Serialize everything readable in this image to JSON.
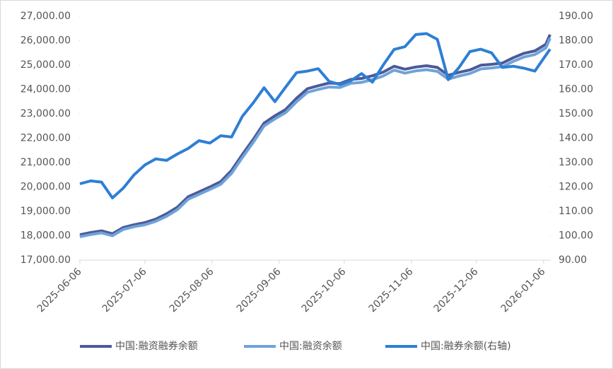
{
  "chart_data": {
    "type": "line",
    "x": [
      "2025-06-06",
      "2025-06-11",
      "2025-06-16",
      "2025-06-21",
      "2025-06-26",
      "2025-07-01",
      "2025-07-06",
      "2025-07-11",
      "2025-07-16",
      "2025-07-21",
      "2025-07-26",
      "2025-07-31",
      "2025-08-05",
      "2025-08-10",
      "2025-08-15",
      "2025-08-20",
      "2025-08-25",
      "2025-08-30",
      "2025-09-04",
      "2025-09-09",
      "2025-09-14",
      "2025-09-19",
      "2025-09-24",
      "2025-09-29",
      "2025-10-04",
      "2025-10-09",
      "2025-10-14",
      "2025-10-19",
      "2025-10-24",
      "2025-10-29",
      "2025-11-03",
      "2025-11-08",
      "2025-11-13",
      "2025-11-18",
      "2025-11-23",
      "2025-11-28",
      "2025-12-03",
      "2025-12-08",
      "2025-12-13",
      "2025-12-18",
      "2025-12-23",
      "2025-12-28",
      "2026-01-02",
      "2026-01-07",
      "2026-01-09"
    ],
    "series": [
      {
        "name": "中国:融资融券余额",
        "color": "#4c5a99",
        "values": [
          18040,
          18130,
          18200,
          18080,
          18340,
          18450,
          18540,
          18680,
          18900,
          19170,
          19600,
          19800,
          20000,
          20220,
          20680,
          21330,
          21950,
          22620,
          22920,
          23180,
          23640,
          24030,
          24150,
          24260,
          24240,
          24410,
          24450,
          24560,
          24710,
          24950,
          24830,
          24920,
          24970,
          24900,
          24580,
          24700,
          24800,
          24990,
          25030,
          25080,
          25300,
          25480,
          25580,
          25850,
          26250
        ]
      },
      {
        "name": "中国:融资余额",
        "color": "#6fa3d8",
        "values": [
          17960,
          18050,
          18120,
          18000,
          18260,
          18370,
          18450,
          18590,
          18800,
          19070,
          19500,
          19700,
          19900,
          20110,
          20560,
          21210,
          21830,
          22500,
          22790,
          23050,
          23500,
          23880,
          24000,
          24100,
          24080,
          24250,
          24290,
          24400,
          24550,
          24790,
          24670,
          24760,
          24810,
          24740,
          24420,
          24550,
          24650,
          24840,
          24880,
          24930,
          25150,
          25330,
          25430,
          25700,
          26100
        ]
      },
      {
        "name": "中国:融券余额(右轴)",
        "color": "#2e7fd4",
        "axis": "y2",
        "values": [
          121.3,
          122.5,
          122.0,
          115.5,
          119.5,
          125.0,
          129.0,
          131.5,
          130.9,
          133.5,
          135.8,
          139.0,
          138.0,
          141.0,
          140.5,
          149.0,
          154.5,
          160.7,
          155.0,
          161.0,
          166.9,
          167.5,
          168.5,
          163.3,
          162.0,
          163.5,
          166.5,
          163.0,
          170.0,
          176.4,
          177.5,
          182.5,
          182.9,
          180.5,
          164.0,
          169.0,
          175.5,
          176.5,
          175.0,
          169.0,
          169.5,
          168.7,
          167.5,
          174.0,
          176.5
        ]
      }
    ],
    "xlim": [
      "2025-06-06",
      "2026-01-09"
    ],
    "xticks": [
      "2025-06-06",
      "2025-07-06",
      "2025-08-06",
      "2025-09-06",
      "2025-10-06",
      "2025-11-06",
      "2025-12-06",
      "2026-01-06"
    ],
    "ylim": [
      17000,
      27000
    ],
    "yticks": [
      {
        "value": 17000,
        "label": "17,000.00"
      },
      {
        "value": 18000,
        "label": "18,000.00"
      },
      {
        "value": 19000,
        "label": "19,000.00"
      },
      {
        "value": 20000,
        "label": "20,000.00"
      },
      {
        "value": 21000,
        "label": "21,000.00"
      },
      {
        "value": 22000,
        "label": "22,000.00"
      },
      {
        "value": 23000,
        "label": "23,000.00"
      },
      {
        "value": 24000,
        "label": "24,000.00"
      },
      {
        "value": 25000,
        "label": "25,000.00"
      },
      {
        "value": 26000,
        "label": "26,000.00"
      },
      {
        "value": 27000,
        "label": "27,000.00"
      }
    ],
    "y2lim": [
      90,
      190
    ],
    "y2ticks": [
      {
        "value": 90,
        "label": "90.00"
      },
      {
        "value": 100,
        "label": "100.00"
      },
      {
        "value": 110,
        "label": "110.00"
      },
      {
        "value": 120,
        "label": "120.00"
      },
      {
        "value": 130,
        "label": "130.00"
      },
      {
        "value": 140,
        "label": "140.00"
      },
      {
        "value": 150,
        "label": "150.00"
      },
      {
        "value": 160,
        "label": "160.00"
      },
      {
        "value": 170,
        "label": "170.00"
      },
      {
        "value": 180,
        "label": "180.00"
      },
      {
        "value": 190,
        "label": "190.00"
      }
    ],
    "grid": false,
    "legend": "bottom"
  }
}
